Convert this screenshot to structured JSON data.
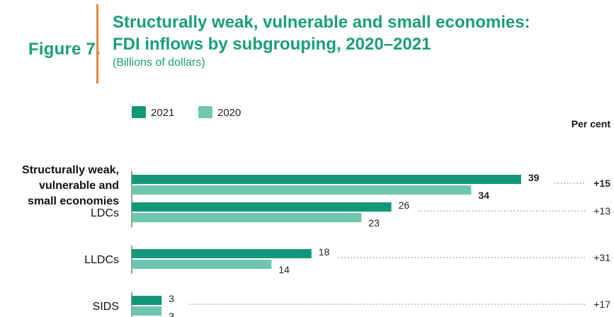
{
  "figure_label": "Figure 7.",
  "title_line1": "Structurally weak, vulnerable and small economies:",
  "title_line2": "FDI inflows by subgrouping, 2020–2021",
  "subtitle": "(Billions of dollars)",
  "colors": {
    "series_2021": "#13977a",
    "series_2020": "#6fc6ae",
    "accent_divider": "#e8893a",
    "title": "#1a9e78"
  },
  "chart_data": {
    "type": "bar",
    "orientation": "horizontal",
    "title": "Structurally weak, vulnerable and small economies: FDI inflows by subgrouping, 2020–2021",
    "unit": "(Billions of dollars)",
    "categories": [
      {
        "lines": [
          "Structurally weak,",
          "vulnerable and",
          "small economies"
        ],
        "bold": true
      },
      {
        "lines": [
          "LDCs"
        ],
        "bold": false
      },
      {
        "lines": [
          "LLDCs"
        ],
        "bold": false
      },
      {
        "lines": [
          "SIDS"
        ],
        "bold": false
      }
    ],
    "series": [
      {
        "name": "2021",
        "values": [
          39,
          26,
          18,
          3
        ]
      },
      {
        "name": "2020",
        "values": [
          34,
          23,
          14,
          3
        ]
      }
    ],
    "percent_change_header": "Per cent",
    "percent_change": [
      "+15",
      "+13",
      "+31",
      "+17"
    ],
    "xlim": [
      0,
      40
    ],
    "legend": "top-left",
    "grid": false
  }
}
